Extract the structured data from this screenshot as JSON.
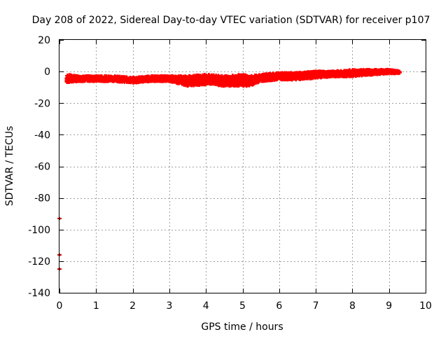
{
  "chart_data": {
    "type": "scatter",
    "title": "Day 208 of 2022, Sidereal Day-to-day VTEC variation (SDTVAR) for receiver p107",
    "xlabel": "GPS time / hours",
    "ylabel": "SDTVAR / TECUs",
    "xlim": [
      0,
      10
    ],
    "ylim": [
      -140,
      20
    ],
    "x_ticks": [
      0,
      1,
      2,
      3,
      4,
      5,
      6,
      7,
      8,
      9,
      10
    ],
    "y_ticks": [
      20,
      0,
      -20,
      -40,
      -60,
      -80,
      -100,
      -120,
      -140
    ],
    "grid": true,
    "legend": "none",
    "series": [
      {
        "name": "SDTVAR",
        "color": "#ff0000",
        "marker": "plus",
        "band": [
          {
            "x": 0.2,
            "min": -7,
            "max": -2
          },
          {
            "x": 0.5,
            "min": -6,
            "max": -3
          },
          {
            "x": 1.0,
            "min": -6,
            "max": -3
          },
          {
            "x": 1.5,
            "min": -6,
            "max": -3
          },
          {
            "x": 2.0,
            "min": -7,
            "max": -4
          },
          {
            "x": 2.5,
            "min": -6,
            "max": -3
          },
          {
            "x": 3.0,
            "min": -6,
            "max": -3
          },
          {
            "x": 3.5,
            "min": -9,
            "max": -3
          },
          {
            "x": 4.0,
            "min": -8,
            "max": -2
          },
          {
            "x": 4.5,
            "min": -9,
            "max": -3
          },
          {
            "x": 5.0,
            "min": -9,
            "max": -2
          },
          {
            "x": 5.2,
            "min": -9,
            "max": -3
          },
          {
            "x": 5.5,
            "min": -6,
            "max": -2
          },
          {
            "x": 6.0,
            "min": -5,
            "max": -1
          },
          {
            "x": 6.5,
            "min": -5,
            "max": -1
          },
          {
            "x": 7.0,
            "min": -4,
            "max": 0
          },
          {
            "x": 7.5,
            "min": -3,
            "max": 0
          },
          {
            "x": 8.0,
            "min": -3,
            "max": 1
          },
          {
            "x": 8.5,
            "min": -2,
            "max": 1
          },
          {
            "x": 9.0,
            "min": -1,
            "max": 1
          },
          {
            "x": 9.3,
            "min": -1,
            "max": 0
          }
        ]
      },
      {
        "name": "outliers",
        "color": "#cc0000",
        "marker": "plus",
        "points": [
          {
            "x": 0.0,
            "y": -93
          },
          {
            "x": 0.0,
            "y": -116
          },
          {
            "x": 0.0,
            "y": -125
          }
        ]
      }
    ]
  }
}
